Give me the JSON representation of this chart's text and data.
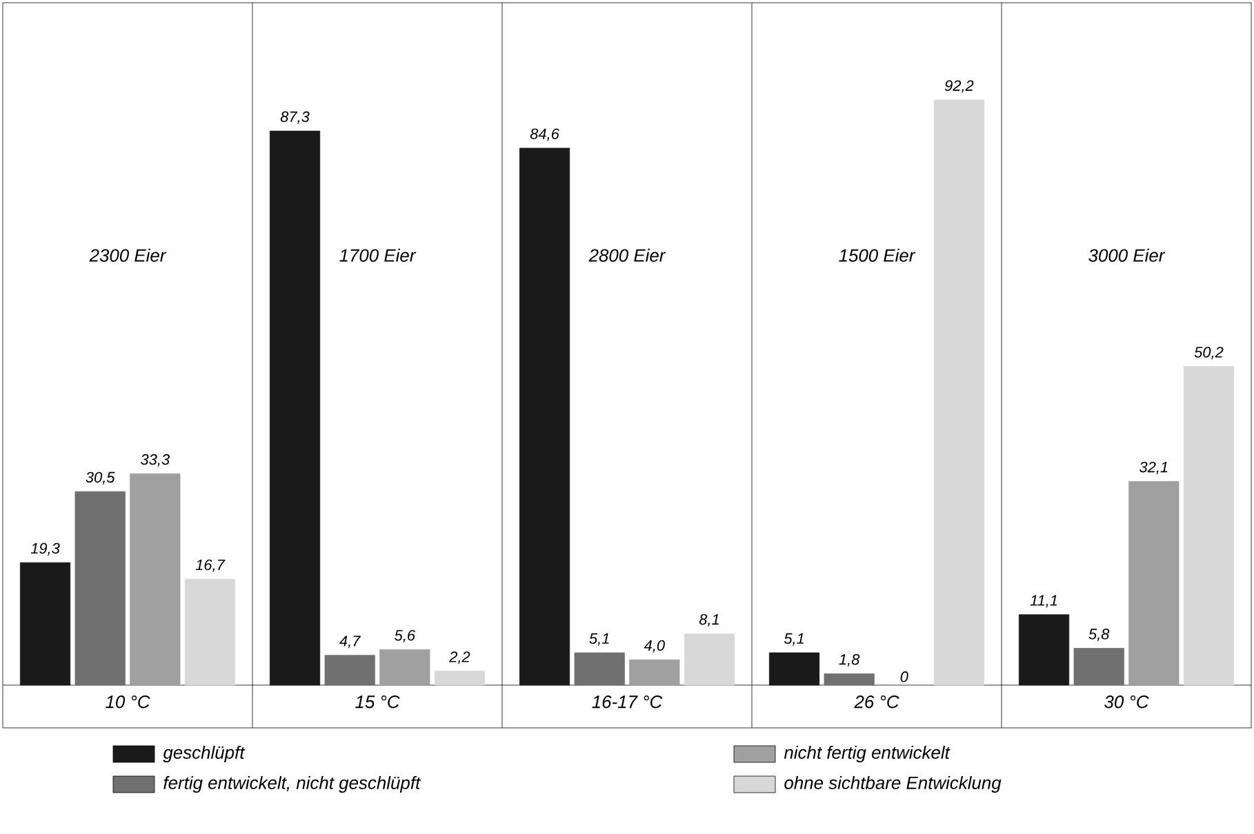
{
  "chart_data": {
    "type": "bar",
    "categories": [
      "10 °C",
      "15 °C",
      "16-17 °C",
      "26 °C",
      "30 °C"
    ],
    "series": [
      {
        "name": "geschlüpft",
        "color": "#1a1a1a",
        "values": [
          19.3,
          87.3,
          84.6,
          5.1,
          11.1
        ],
        "value_labels": [
          "19,3",
          "87,3",
          "84,6",
          "5,1",
          "11,1"
        ]
      },
      {
        "name": "fertig entwickelt, nicht geschlüpft",
        "color": "#707070",
        "values": [
          30.5,
          4.7,
          5.1,
          1.8,
          5.8
        ],
        "value_labels": [
          "30,5",
          "4,7",
          "5,1",
          "1,8",
          "5,8"
        ]
      },
      {
        "name": "nicht fertig entwickelt",
        "color": "#a0a0a0",
        "values": [
          33.3,
          5.6,
          4.0,
          0,
          32.1
        ],
        "value_labels": [
          "33,3",
          "5,6",
          "4,0",
          "0",
          "32,1"
        ]
      },
      {
        "name": "ohne sichtbare Entwicklung",
        "color": "#d8d8d8",
        "values": [
          16.7,
          2.2,
          8.1,
          92.2,
          50.2
        ],
        "value_labels": [
          "16,7",
          "2,2",
          "8,1",
          "92,2",
          "50,2"
        ]
      }
    ],
    "annotations": [
      "2300 Eier",
      "1700 Eier",
      "2800 Eier",
      "1500 Eier",
      "3000 Eier"
    ],
    "legend": "bottom"
  }
}
